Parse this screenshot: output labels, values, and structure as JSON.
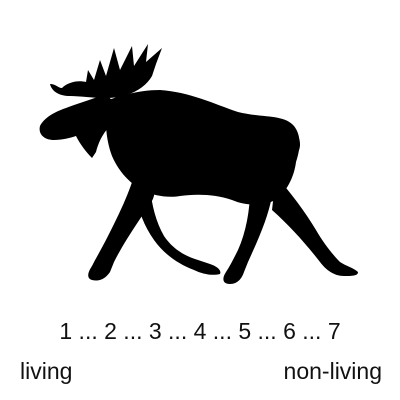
{
  "image": {
    "subject": "moose-silhouette-icon",
    "fill_color": "#000000",
    "background_color": "#ffffff"
  },
  "rating_scale": {
    "text": "1 ... 2 ... 3 ... 4 ... 5 ... 6 ... 7",
    "low_anchor": "living",
    "high_anchor": "non-living"
  }
}
